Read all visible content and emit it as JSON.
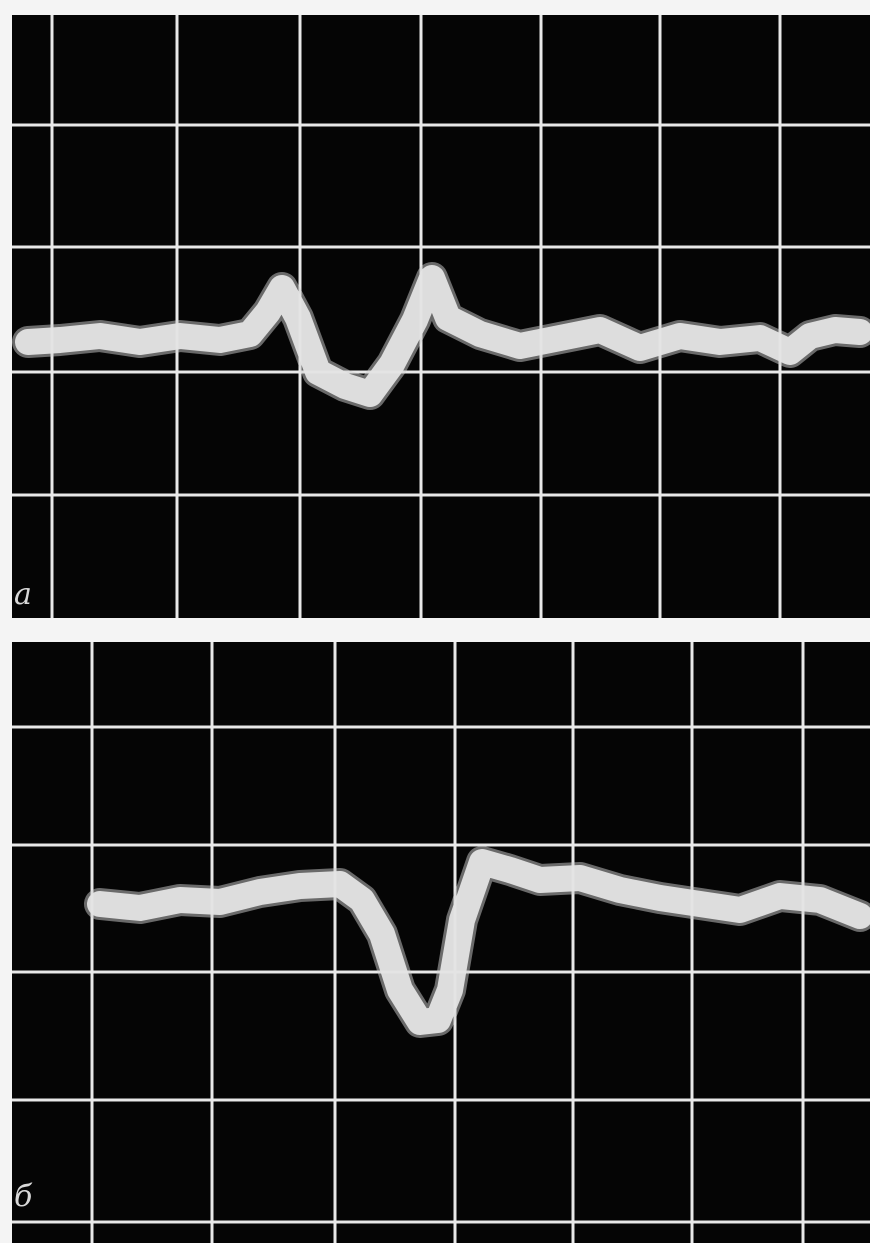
{
  "panels": [
    {
      "label": "а"
    },
    {
      "label": "б"
    }
  ]
}
